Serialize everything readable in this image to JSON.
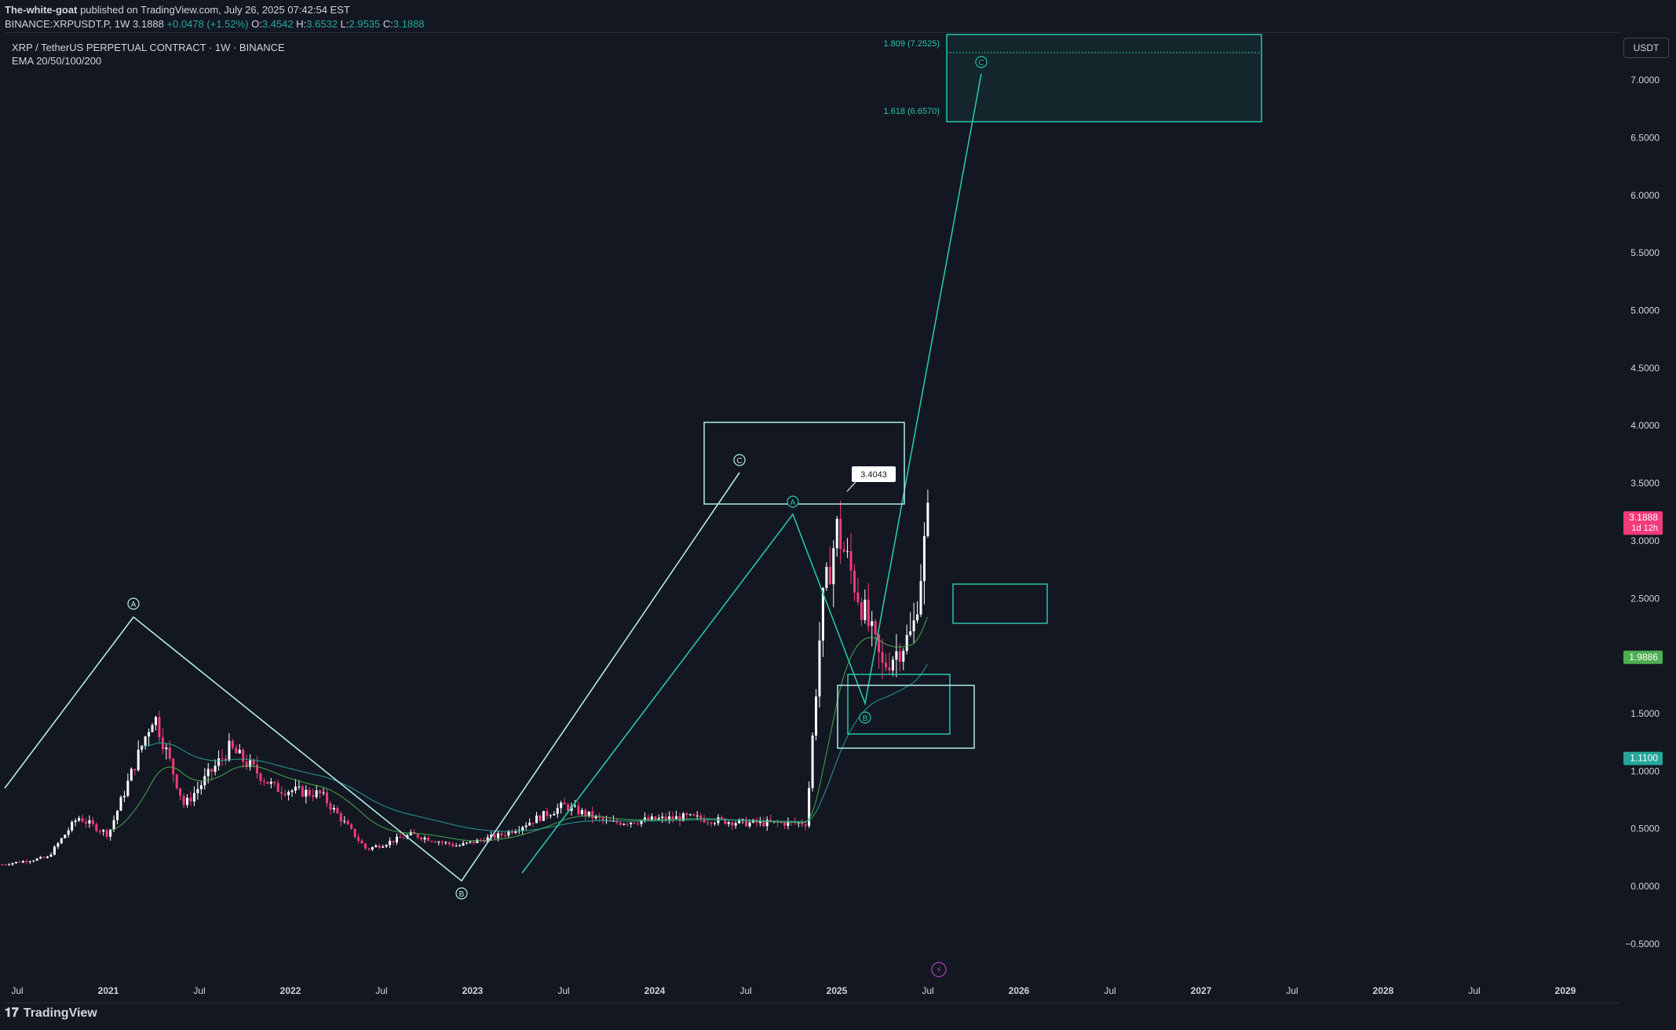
{
  "header": {
    "author": "The-white-goat",
    "published": "published on TradingView.com, July 26, 2025 07:42:54 EST",
    "symbol": "BINANCE:XRPUSDT.P, 1W",
    "last": "3.1888",
    "change": "+0.0478 (+1.52%)",
    "o_label": "O:",
    "o": "3.4542",
    "h_label": "H:",
    "h": "3.6532",
    "l_label": "L:",
    "l": "2.9535",
    "c_label": "C:",
    "c": "3.1888"
  },
  "legend": {
    "title": "XRP / TetherUS PERPETUAL CONTRACT · 1W · BINANCE",
    "indicator": "EMA 20/50/100/200"
  },
  "currency": "USDT",
  "brand": "TradingView",
  "colors": {
    "background": "#131722",
    "up": "#ffffff",
    "down": "#f23b7a",
    "teal": "#26c6a6",
    "wave_white": "#b2ebe6",
    "grid_text": "#d1d4dc",
    "price_badge": "#f23b7a",
    "ema_green": "#4caf50",
    "ema_teal": "#26a69a"
  },
  "chart_data": {
    "type": "candlestick",
    "title": "XRP / TetherUS PERPETUAL CONTRACT · 1W · BINANCE",
    "x_ticks": [
      "Jul",
      "2021",
      "Jul",
      "2022",
      "Jul",
      "2023",
      "Jul",
      "2024",
      "Jul",
      "2025",
      "Jul",
      "2026",
      "Jul",
      "2027",
      "Jul",
      "2028",
      "Jul",
      "2029"
    ],
    "y_ticks": [
      "7.0000",
      "6.5000",
      "6.0000",
      "5.5000",
      "5.0000",
      "4.5000",
      "4.0000",
      "3.5000",
      "3.0000",
      "2.5000",
      "2.0000",
      "1.5000",
      "1.0000",
      "0.5000",
      "0.0000",
      "−0.5000"
    ],
    "ylim": [
      -0.5,
      7.5
    ],
    "price_labels": [
      {
        "value": "3.1888",
        "sub": "1d 12h",
        "level": 3.1888,
        "color": "#f23b7a"
      },
      {
        "value": "1.9886",
        "level": 1.9886,
        "color": "#4caf50"
      },
      {
        "value": "1.1100",
        "level": 1.11,
        "color": "#26a69a"
      }
    ],
    "annotations": {
      "peak_label": "3.4043",
      "fib_1809": "1.809 (7.2525)",
      "fib_1618": "1.618 (6.6570)",
      "wave_a": "A",
      "wave_b": "B",
      "wave_c": "C"
    },
    "series_close": [
      {
        "t": "2020-06",
        "v": 0.19
      },
      {
        "t": "2020-09",
        "v": 0.25
      },
      {
        "t": "2020-11",
        "v": 0.6
      },
      {
        "t": "2021-01",
        "v": 0.45
      },
      {
        "t": "2021-04",
        "v": 1.5
      },
      {
        "t": "2021-06",
        "v": 0.7
      },
      {
        "t": "2021-09",
        "v": 1.2
      },
      {
        "t": "2021-12",
        "v": 0.85
      },
      {
        "t": "2022-03",
        "v": 0.8
      },
      {
        "t": "2022-06",
        "v": 0.32
      },
      {
        "t": "2022-09",
        "v": 0.45
      },
      {
        "t": "2022-12",
        "v": 0.35
      },
      {
        "t": "2023-03",
        "v": 0.45
      },
      {
        "t": "2023-07",
        "v": 0.7
      },
      {
        "t": "2023-10",
        "v": 0.55
      },
      {
        "t": "2024-03",
        "v": 0.6
      },
      {
        "t": "2024-07",
        "v": 0.55
      },
      {
        "t": "2024-11",
        "v": 0.55
      },
      {
        "t": "2024-12",
        "v": 2.4
      },
      {
        "t": "2025-01",
        "v": 3.1
      },
      {
        "t": "2025-03",
        "v": 2.3
      },
      {
        "t": "2025-04",
        "v": 1.9
      },
      {
        "t": "2025-06",
        "v": 2.2
      },
      {
        "t": "2025-07",
        "v": 3.19
      }
    ]
  }
}
